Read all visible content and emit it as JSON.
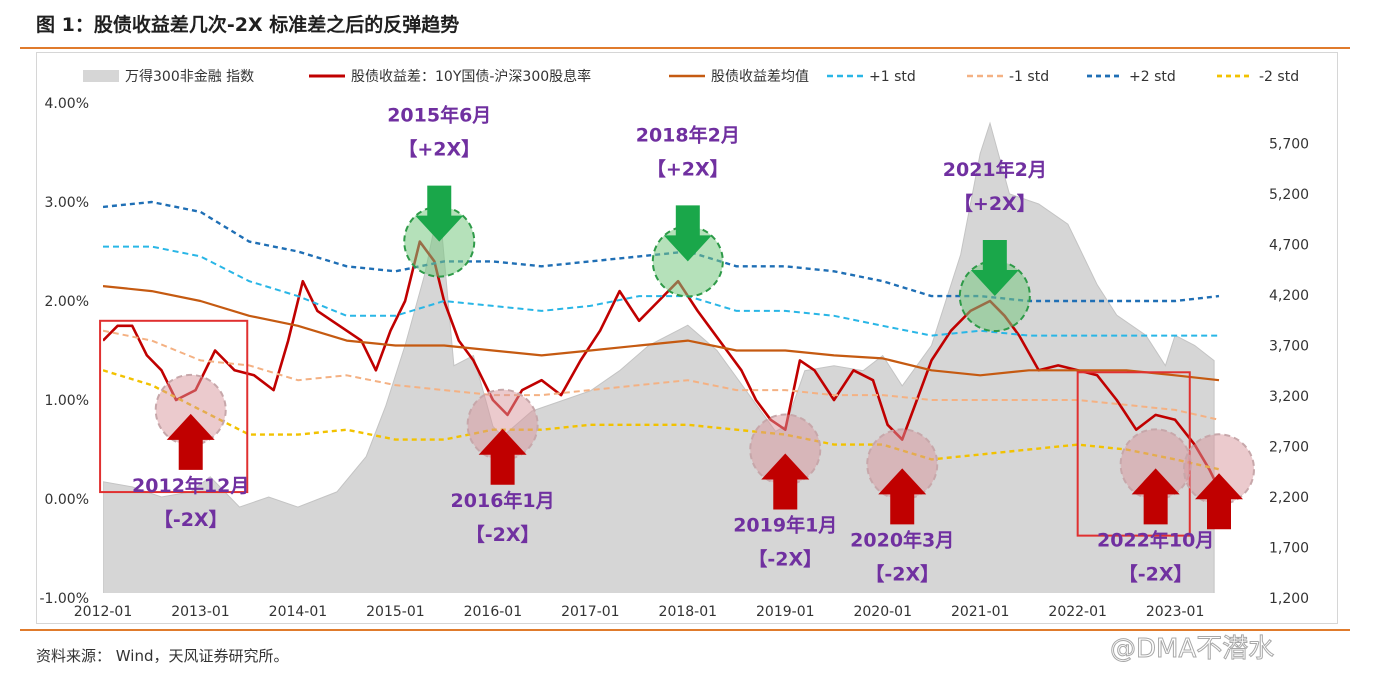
{
  "figure_title": "图 1：股债收益差几次-2X 标准差之后的反弹趋势",
  "source_text": "资料来源：  Wind，天风证券研究所。",
  "watermark_text": "@DMA不潜水",
  "colors": {
    "area": "#d6d6d6",
    "spread": "#c00000",
    "mean": "#c55a11",
    "plus1": "#29b6e6",
    "minus1": "#f4b183",
    "plus2": "#1f6fb5",
    "minus2": "#f2c200",
    "annotation": "#7030a0",
    "arrow_down": "#1aa74a",
    "arrow_up": "#c00000",
    "frame": "#e03030"
  },
  "chart_data": {
    "type": "line",
    "title": "",
    "x_ticks": [
      "2012-01",
      "2013-01",
      "2014-01",
      "2015-01",
      "2016-01",
      "2017-01",
      "2018-01",
      "2019-01",
      "2020-01",
      "2021-01",
      "2022-01",
      "2023-01"
    ],
    "y_left_ticks": [
      "4.00%",
      "3.00%",
      "2.00%",
      "1.00%",
      "0.00%",
      "-1.00%"
    ],
    "y_left_range": [
      -1.0,
      4.0
    ],
    "y_right_ticks": [
      "5,700",
      "5,200",
      "4,700",
      "4,200",
      "3,700",
      "3,200",
      "2,700",
      "2,200",
      "1,700",
      "1,200"
    ],
    "y_right_range": [
      1200,
      6100
    ],
    "legend": [
      "万得300非金融 指数",
      "股债收益差：10Y国债-沪深300股息率",
      "股债收益差均值",
      "+1 std",
      "-1 std",
      "+2 std",
      "-2 std"
    ],
    "legend_position": "top",
    "series": [
      {
        "name": "万得300非金融 指数",
        "type": "area",
        "axis": "right",
        "x": [
          2012.0,
          2012.3,
          2012.6,
          2012.9,
          2013.1,
          2013.4,
          2013.7,
          2014.0,
          2014.4,
          2014.7,
          2014.9,
          2015.1,
          2015.3,
          2015.45,
          2015.6,
          2015.8,
          2016.0,
          2016.1,
          2016.4,
          2016.7,
          2017.0,
          2017.3,
          2017.6,
          2017.9,
          2018.0,
          2018.3,
          2018.6,
          2018.9,
          2019.0,
          2019.2,
          2019.5,
          2019.8,
          2020.0,
          2020.2,
          2020.5,
          2020.8,
          2021.0,
          2021.1,
          2021.3,
          2021.6,
          2021.9,
          2022.0,
          2022.2,
          2022.4,
          2022.7,
          2022.9,
          2023.0,
          2023.2,
          2023.4
        ],
        "values": [
          2350,
          2300,
          2200,
          2250,
          2400,
          2100,
          2200,
          2100,
          2250,
          2600,
          3100,
          3700,
          4400,
          5100,
          3500,
          3600,
          2900,
          2800,
          3050,
          3150,
          3250,
          3450,
          3700,
          3850,
          3900,
          3650,
          3250,
          2850,
          2900,
          3450,
          3500,
          3450,
          3600,
          3300,
          3700,
          4600,
          5600,
          5900,
          5200,
          5100,
          4900,
          4700,
          4300,
          4000,
          3800,
          3500,
          3800,
          3700,
          3550
        ]
      },
      {
        "name": "股债收益差：10Y国债-沪深300股息率",
        "type": "line",
        "axis": "left",
        "x": [
          2012.0,
          2012.15,
          2012.3,
          2012.45,
          2012.6,
          2012.75,
          2012.95,
          2013.15,
          2013.35,
          2013.55,
          2013.75,
          2013.9,
          2014.05,
          2014.2,
          2014.35,
          2014.5,
          2014.65,
          2014.8,
          2014.95,
          2015.1,
          2015.25,
          2015.4,
          2015.5,
          2015.65,
          2015.8,
          2016.0,
          2016.15,
          2016.3,
          2016.5,
          2016.7,
          2016.9,
          2017.1,
          2017.3,
          2017.5,
          2017.7,
          2017.9,
          2018.1,
          2018.25,
          2018.4,
          2018.55,
          2018.7,
          2018.85,
          2019.0,
          2019.15,
          2019.3,
          2019.5,
          2019.7,
          2019.9,
          2020.05,
          2020.2,
          2020.35,
          2020.5,
          2020.7,
          2020.9,
          2021.1,
          2021.25,
          2021.4,
          2021.6,
          2021.8,
          2022.0,
          2022.2,
          2022.4,
          2022.6,
          2022.8,
          2023.0,
          2023.2,
          2023.35,
          2023.45
        ],
        "values": [
          1.6,
          1.75,
          1.75,
          1.45,
          1.3,
          1.0,
          1.1,
          1.5,
          1.3,
          1.25,
          1.1,
          1.6,
          2.2,
          1.9,
          1.8,
          1.7,
          1.6,
          1.3,
          1.7,
          2.0,
          2.6,
          2.4,
          2.0,
          1.6,
          1.4,
          1.0,
          0.85,
          1.1,
          1.2,
          1.05,
          1.4,
          1.7,
          2.1,
          1.8,
          2.0,
          2.2,
          1.9,
          1.7,
          1.5,
          1.3,
          1.0,
          0.8,
          0.7,
          1.4,
          1.3,
          1.0,
          1.3,
          1.2,
          0.75,
          0.6,
          1.0,
          1.4,
          1.7,
          1.9,
          2.0,
          1.85,
          1.65,
          1.3,
          1.35,
          1.3,
          1.25,
          1.0,
          0.7,
          0.85,
          0.8,
          0.55,
          0.3,
          0.1
        ]
      },
      {
        "name": "股债收益差均值",
        "type": "line",
        "axis": "left",
        "x": [
          2012.0,
          2012.5,
          2013.0,
          2013.5,
          2014.0,
          2014.5,
          2015.0,
          2015.5,
          2016.0,
          2016.5,
          2017.0,
          2017.5,
          2018.0,
          2018.5,
          2019.0,
          2019.5,
          2020.0,
          2020.5,
          2021.0,
          2021.5,
          2022.0,
          2022.5,
          2023.0,
          2023.45
        ],
        "values": [
          2.15,
          2.1,
          2.0,
          1.85,
          1.75,
          1.6,
          1.55,
          1.55,
          1.5,
          1.45,
          1.5,
          1.55,
          1.6,
          1.5,
          1.5,
          1.45,
          1.42,
          1.3,
          1.25,
          1.3,
          1.3,
          1.3,
          1.25,
          1.2
        ]
      },
      {
        "name": "+1 std",
        "type": "line",
        "axis": "left",
        "x": [
          2012.0,
          2012.5,
          2013.0,
          2013.5,
          2014.0,
          2014.5,
          2015.0,
          2015.5,
          2016.0,
          2016.5,
          2017.0,
          2017.5,
          2018.0,
          2018.5,
          2019.0,
          2019.5,
          2020.0,
          2020.5,
          2021.0,
          2021.5,
          2022.0,
          2022.5,
          2023.0,
          2023.45
        ],
        "values": [
          2.55,
          2.55,
          2.45,
          2.2,
          2.05,
          1.85,
          1.85,
          2.0,
          1.95,
          1.9,
          1.95,
          2.05,
          2.05,
          1.9,
          1.9,
          1.85,
          1.75,
          1.65,
          1.7,
          1.65,
          1.65,
          1.65,
          1.65,
          1.65
        ]
      },
      {
        "name": "-1 std",
        "type": "line",
        "axis": "left",
        "x": [
          2012.0,
          2012.5,
          2013.0,
          2013.5,
          2014.0,
          2014.5,
          2015.0,
          2015.5,
          2016.0,
          2016.5,
          2017.0,
          2017.5,
          2018.0,
          2018.5,
          2019.0,
          2019.5,
          2020.0,
          2020.5,
          2021.0,
          2021.5,
          2022.0,
          2022.5,
          2023.0,
          2023.45
        ],
        "values": [
          1.7,
          1.6,
          1.4,
          1.35,
          1.2,
          1.25,
          1.15,
          1.1,
          1.05,
          1.05,
          1.1,
          1.15,
          1.2,
          1.1,
          1.1,
          1.05,
          1.05,
          1.0,
          1.0,
          1.0,
          1.0,
          0.95,
          0.9,
          0.8
        ]
      },
      {
        "name": "+2 std",
        "type": "line",
        "axis": "left",
        "x": [
          2012.0,
          2012.5,
          2013.0,
          2013.5,
          2014.0,
          2014.5,
          2015.0,
          2015.5,
          2016.0,
          2016.5,
          2017.0,
          2017.5,
          2018.0,
          2018.5,
          2019.0,
          2019.5,
          2020.0,
          2020.5,
          2021.0,
          2021.5,
          2022.0,
          2022.5,
          2023.0,
          2023.45
        ],
        "values": [
          2.95,
          3.0,
          2.9,
          2.6,
          2.5,
          2.35,
          2.3,
          2.4,
          2.4,
          2.35,
          2.4,
          2.45,
          2.5,
          2.35,
          2.35,
          2.3,
          2.2,
          2.05,
          2.05,
          2.0,
          2.0,
          2.0,
          2.0,
          2.05
        ]
      },
      {
        "name": "-2 std",
        "type": "line",
        "axis": "left",
        "x": [
          2012.0,
          2012.5,
          2013.0,
          2013.5,
          2014.0,
          2014.5,
          2015.0,
          2015.5,
          2016.0,
          2016.5,
          2017.0,
          2017.5,
          2018.0,
          2018.5,
          2019.0,
          2019.5,
          2020.0,
          2020.5,
          2021.0,
          2021.5,
          2022.0,
          2022.5,
          2023.0,
          2023.45
        ],
        "values": [
          1.3,
          1.15,
          0.9,
          0.65,
          0.65,
          0.7,
          0.6,
          0.6,
          0.7,
          0.7,
          0.75,
          0.75,
          0.75,
          0.7,
          0.65,
          0.55,
          0.55,
          0.4,
          0.45,
          0.5,
          0.55,
          0.5,
          0.4,
          0.3
        ]
      }
    ],
    "annotations": [
      {
        "date": "2012年12月",
        "mult": "【-2X】",
        "kind": "up",
        "x": 2012.9,
        "y": 0.9
      },
      {
        "date": "2015年6月",
        "mult": "【+2X】",
        "kind": "down",
        "x": 2015.45,
        "y": 2.6
      },
      {
        "date": "2016年1月",
        "mult": "【-2X】",
        "kind": "up",
        "x": 2016.1,
        "y": 0.75
      },
      {
        "date": "2018年2月",
        "mult": "【+2X】",
        "kind": "down",
        "x": 2018.0,
        "y": 2.4
      },
      {
        "date": "2019年1月",
        "mult": "【-2X】",
        "kind": "up",
        "x": 2019.0,
        "y": 0.5
      },
      {
        "date": "2020年3月",
        "mult": "【-2X】",
        "kind": "up",
        "x": 2020.2,
        "y": 0.35
      },
      {
        "date": "2021年2月",
        "mult": "【+2X】",
        "kind": "down",
        "x": 2021.15,
        "y": 2.05
      },
      {
        "date": "2022年10月",
        "mult": "【-2X】",
        "kind": "up",
        "x": 2022.8,
        "y": 0.35
      },
      {
        "date": "",
        "mult": "",
        "kind": "up",
        "x": 2023.45,
        "y": 0.3
      }
    ]
  }
}
